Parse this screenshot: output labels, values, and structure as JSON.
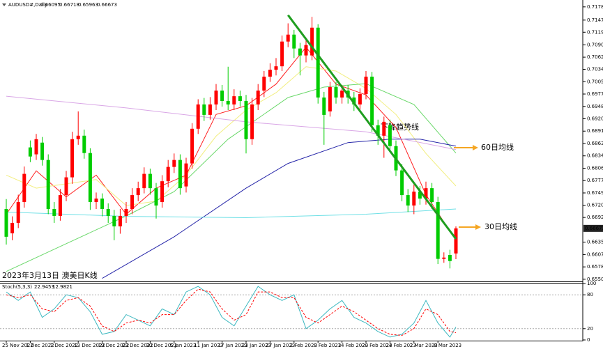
{
  "chart_data": [
    {
      "type": "candlestick",
      "title": "AUDUSD#,Daily",
      "caption": "2023年3月13日 澳美日K线",
      "annotations": [
        "下降趋势线",
        "60日均线",
        "30日均线"
      ],
      "categories": [
        "25 Nov 2022",
        null,
        null,
        null,
        "1 Dec 2022",
        null,
        null,
        null,
        "7 Dec 2022",
        null,
        null,
        null,
        "13 Dec 2022",
        null,
        null,
        null,
        "19 Dec 2022",
        null,
        null,
        null,
        "23 Dec 2022",
        null,
        null,
        null,
        "30 Dec 2022",
        null,
        null,
        null,
        "5 Jan 2023",
        null,
        null,
        null,
        "11 Jan 2023",
        null,
        null,
        null,
        "17 Jan 2023",
        null,
        null,
        null,
        "23 Jan 2023",
        null,
        null,
        null,
        "27 Jan 2023",
        null,
        null,
        null,
        "2 Feb 2023",
        null,
        null,
        null,
        "8 Feb 2023",
        null,
        null,
        null,
        "14 Feb 2023",
        null,
        null,
        null,
        "20 Feb 2023",
        null,
        null,
        null,
        "24 Feb 2023",
        null,
        null,
        null,
        "2 Mar 2023",
        null,
        null,
        null,
        "8 Mar 2023",
        null,
        null,
        null
      ],
      "open": [
        0.6712,
        0.6656,
        0.668,
        0.6728,
        0.6854,
        0.6838,
        0.6865,
        0.6825,
        0.6712,
        0.6696,
        0.6744,
        0.6785,
        0.6873,
        0.6881,
        0.6841,
        0.6728,
        0.6736,
        0.6712,
        0.6696,
        0.6672,
        0.6696,
        0.6712,
        0.6744,
        0.676,
        0.6793,
        0.676,
        0.6728,
        0.6776,
        0.6809,
        0.6825,
        0.6764,
        0.6817,
        0.6897,
        0.6953,
        0.6929,
        0.6953,
        0.6985,
        0.6961,
        0.6953,
        0.6972,
        0.6961,
        0.6873,
        0.6953,
        0.6985,
        0.7017,
        0.7033,
        0.7041,
        0.7098,
        0.7114,
        0.7082,
        0.7066,
        0.7066,
        0.713,
        0.6969,
        0.6937,
        0.6993,
        0.6969,
        0.6985,
        0.6969,
        0.6953,
        0.6977,
        0.7017,
        0.6905,
        0.6881,
        0.6905,
        0.6857,
        0.6801,
        0.6744,
        0.672,
        0.6752,
        0.6736,
        0.676,
        0.6728,
        0.6597,
        0.6606,
        0.66095
      ],
      "high": [
        0.6735,
        0.6695,
        0.6745,
        0.681,
        0.687,
        0.6885,
        0.6878,
        0.6838,
        0.6728,
        0.6758,
        0.68,
        0.689,
        0.6937,
        0.6895,
        0.6852,
        0.675,
        0.6748,
        0.6725,
        0.671,
        0.6712,
        0.6728,
        0.676,
        0.6775,
        0.6808,
        0.6805,
        0.6772,
        0.679,
        0.6825,
        0.684,
        0.6838,
        0.683,
        0.691,
        0.6965,
        0.6968,
        0.697,
        0.7,
        0.6998,
        0.704,
        0.6988,
        0.6985,
        0.6975,
        0.6968,
        0.7,
        0.703,
        0.7048,
        0.706,
        0.7112,
        0.714,
        0.7125,
        0.7095,
        0.7105,
        0.7155,
        0.7138,
        0.6982,
        0.7005,
        0.7005,
        0.6998,
        0.6998,
        0.6982,
        0.699,
        0.703,
        0.7028,
        0.6918,
        0.6925,
        0.6918,
        0.687,
        0.6815,
        0.6758,
        0.6768,
        0.6765,
        0.6775,
        0.6772,
        0.674,
        0.6612,
        0.6618,
        0.66718
      ],
      "low": [
        0.663,
        0.664,
        0.6668,
        0.6715,
        0.682,
        0.6825,
        0.6812,
        0.67,
        0.668,
        0.6685,
        0.673,
        0.677,
        0.686,
        0.6828,
        0.671,
        0.6712,
        0.6695,
        0.668,
        0.664,
        0.6655,
        0.668,
        0.67,
        0.673,
        0.6748,
        0.6745,
        0.669,
        0.6715,
        0.6762,
        0.6795,
        0.6745,
        0.675,
        0.6805,
        0.6885,
        0.6915,
        0.6918,
        0.694,
        0.6948,
        0.694,
        0.694,
        0.6948,
        0.684,
        0.686,
        0.694,
        0.697,
        0.7005,
        0.702,
        0.703,
        0.7085,
        0.706,
        0.702,
        0.705,
        0.7055,
        0.6955,
        0.686,
        0.6925,
        0.6955,
        0.6955,
        0.6955,
        0.6938,
        0.694,
        0.6965,
        0.689,
        0.686,
        0.683,
        0.6845,
        0.6788,
        0.673,
        0.6705,
        0.67,
        0.6722,
        0.6722,
        0.6712,
        0.6585,
        0.6588,
        0.6575,
        0.65963
      ],
      "close": [
        0.6648,
        0.668,
        0.6728,
        0.6793,
        0.6833,
        0.6873,
        0.6825,
        0.6712,
        0.6696,
        0.6744,
        0.6785,
        0.6873,
        0.6881,
        0.6841,
        0.6728,
        0.6736,
        0.6712,
        0.6696,
        0.6672,
        0.6696,
        0.6712,
        0.6744,
        0.676,
        0.6793,
        0.676,
        0.672,
        0.6776,
        0.6809,
        0.6825,
        0.676,
        0.6817,
        0.6897,
        0.6953,
        0.6929,
        0.6953,
        0.6985,
        0.6961,
        0.6953,
        0.6972,
        0.6961,
        0.6873,
        0.6953,
        0.6985,
        0.7017,
        0.7033,
        0.7041,
        0.7098,
        0.7114,
        0.7082,
        0.7066,
        0.709,
        0.713,
        0.6969,
        0.6929,
        0.6993,
        0.6969,
        0.6985,
        0.6969,
        0.6953,
        0.6977,
        0.7017,
        0.6905,
        0.6881,
        0.6913,
        0.6857,
        0.6801,
        0.6744,
        0.672,
        0.6752,
        0.6736,
        0.676,
        0.6728,
        0.6597,
        0.66,
        0.6592,
        0.66673
      ],
      "up_color": "#ff0000",
      "down_color": "#00cc00",
      "ylim": [
        0.6545,
        0.7189
      ],
      "yticks": [
        {
          "value": 0.7178,
          "label": "0.71780"
        },
        {
          "value": 0.71475,
          "label": "0.71475"
        },
        {
          "value": 0.71195,
          "label": "0.71195"
        },
        {
          "value": 0.70905,
          "label": "0.70905"
        },
        {
          "value": 0.7062,
          "label": "0.70620"
        },
        {
          "value": 0.7034,
          "label": "0.70340"
        },
        {
          "value": 0.70055,
          "label": "0.70055"
        },
        {
          "value": 0.6977,
          "label": "0.69770"
        },
        {
          "value": 0.69485,
          "label": "0.69485"
        },
        {
          "value": 0.692,
          "label": "0.69200"
        },
        {
          "value": 0.68915,
          "label": "0.68915"
        },
        {
          "value": 0.6863,
          "label": "0.68630"
        },
        {
          "value": 0.68345,
          "label": "0.68345"
        },
        {
          "value": 0.6806,
          "label": "0.68060"
        },
        {
          "value": 0.67775,
          "label": "0.67775"
        },
        {
          "value": 0.6749,
          "label": "0.67490"
        },
        {
          "value": 0.67205,
          "label": "0.67205"
        },
        {
          "value": 0.66925,
          "label": "0.66925"
        },
        {
          "value": 0.66355,
          "label": "0.66355"
        },
        {
          "value": 0.6607,
          "label": "0.66070"
        },
        {
          "value": 0.65785,
          "label": "0.65785"
        },
        {
          "value": 0.655,
          "label": "0.65500"
        }
      ],
      "lines": [
        {
          "color": "#ff2020",
          "x": [
            0,
            5,
            10,
            15,
            20,
            25,
            30,
            35,
            40,
            45,
            50,
            55,
            60,
            65,
            70,
            75
          ],
          "values": [
            0.67,
            0.68,
            0.674,
            0.679,
            0.67,
            0.676,
            0.679,
            0.693,
            0.695,
            0.7,
            0.7085,
            0.7,
            0.6975,
            0.69,
            0.6745,
            0.664
          ]
        },
        {
          "color": "#f2ee80",
          "x": [
            0,
            5,
            10,
            15,
            20,
            25,
            30,
            35,
            40,
            45,
            50,
            55,
            60,
            65,
            70,
            75
          ],
          "values": [
            0.679,
            0.676,
            0.677,
            0.678,
            0.672,
            0.673,
            0.679,
            0.688,
            0.694,
            0.698,
            0.704,
            0.703,
            0.699,
            0.693,
            0.684,
            0.6765
          ]
        },
        {
          "color": "#6ad86a",
          "x": [
            0,
            10,
            20,
            28,
            37,
            47,
            53,
            60,
            68,
            75
          ],
          "values": [
            0.6568,
            0.6632,
            0.6696,
            0.6752,
            0.6873,
            0.6969,
            0.6993,
            0.7001,
            0.6953,
            0.6841
          ]
        },
        {
          "color": "#2424a8",
          "x": [
            16,
            28,
            40,
            47,
            57,
            64,
            69,
            75
          ],
          "values": [
            0.6552,
            0.6648,
            0.676,
            0.6817,
            0.6865,
            0.6873,
            0.6873,
            0.6857
          ]
        },
        {
          "color": "#d9a6e6",
          "x": [
            0,
            20,
            40,
            60,
            75
          ],
          "values": [
            0.6972,
            0.6945,
            0.6913,
            0.689,
            0.6849
          ]
        },
        {
          "color": "#70e0e6",
          "x": [
            0,
            20,
            40,
            60,
            75
          ],
          "values": [
            0.6705,
            0.6695,
            0.6692,
            0.67,
            0.6712
          ]
        }
      ],
      "trendline": {
        "color": "#1f9e1f",
        "x": [
          47,
          75
        ],
        "values": [
          0.7159,
          0.6643
        ]
      }
    },
    {
      "type": "line",
      "title": "Stoch(5,3,3)",
      "ylim": [
        0,
        100
      ],
      "yticks": [
        100,
        80,
        20,
        0
      ],
      "levels": [
        80,
        20
      ],
      "series": [
        {
          "color": "#3cb8c0",
          "x": [
            0,
            2,
            4,
            6,
            8,
            10,
            12,
            14,
            16,
            18,
            20,
            22,
            24,
            26,
            28,
            30,
            32,
            34,
            36,
            38,
            40,
            42,
            44,
            46,
            48,
            50,
            52,
            54,
            56,
            58,
            60,
            62,
            64,
            66,
            68,
            70,
            72,
            74,
            75
          ],
          "values": [
            85,
            70,
            85,
            40,
            55,
            80,
            75,
            50,
            10,
            15,
            45,
            35,
            25,
            55,
            45,
            85,
            95,
            80,
            40,
            25,
            60,
            95,
            80,
            70,
            80,
            20,
            35,
            55,
            70,
            40,
            30,
            15,
            5,
            10,
            30,
            70,
            30,
            5,
            22.9453
          ]
        },
        {
          "color": "#ff0000",
          "dash": true,
          "x": [
            0,
            2,
            4,
            6,
            8,
            10,
            12,
            14,
            16,
            18,
            20,
            22,
            24,
            26,
            28,
            30,
            32,
            34,
            36,
            38,
            40,
            42,
            44,
            46,
            48,
            50,
            52,
            54,
            56,
            58,
            60,
            62,
            64,
            66,
            68,
            70,
            72,
            74,
            75
          ],
          "values": [
            80,
            75,
            80,
            55,
            50,
            70,
            75,
            60,
            25,
            15,
            30,
            35,
            30,
            45,
            45,
            70,
            90,
            85,
            55,
            35,
            45,
            85,
            85,
            75,
            75,
            40,
            30,
            45,
            60,
            50,
            35,
            20,
            10,
            8,
            20,
            55,
            45,
            15,
            12.9821
          ]
        }
      ]
    }
  ]
}
